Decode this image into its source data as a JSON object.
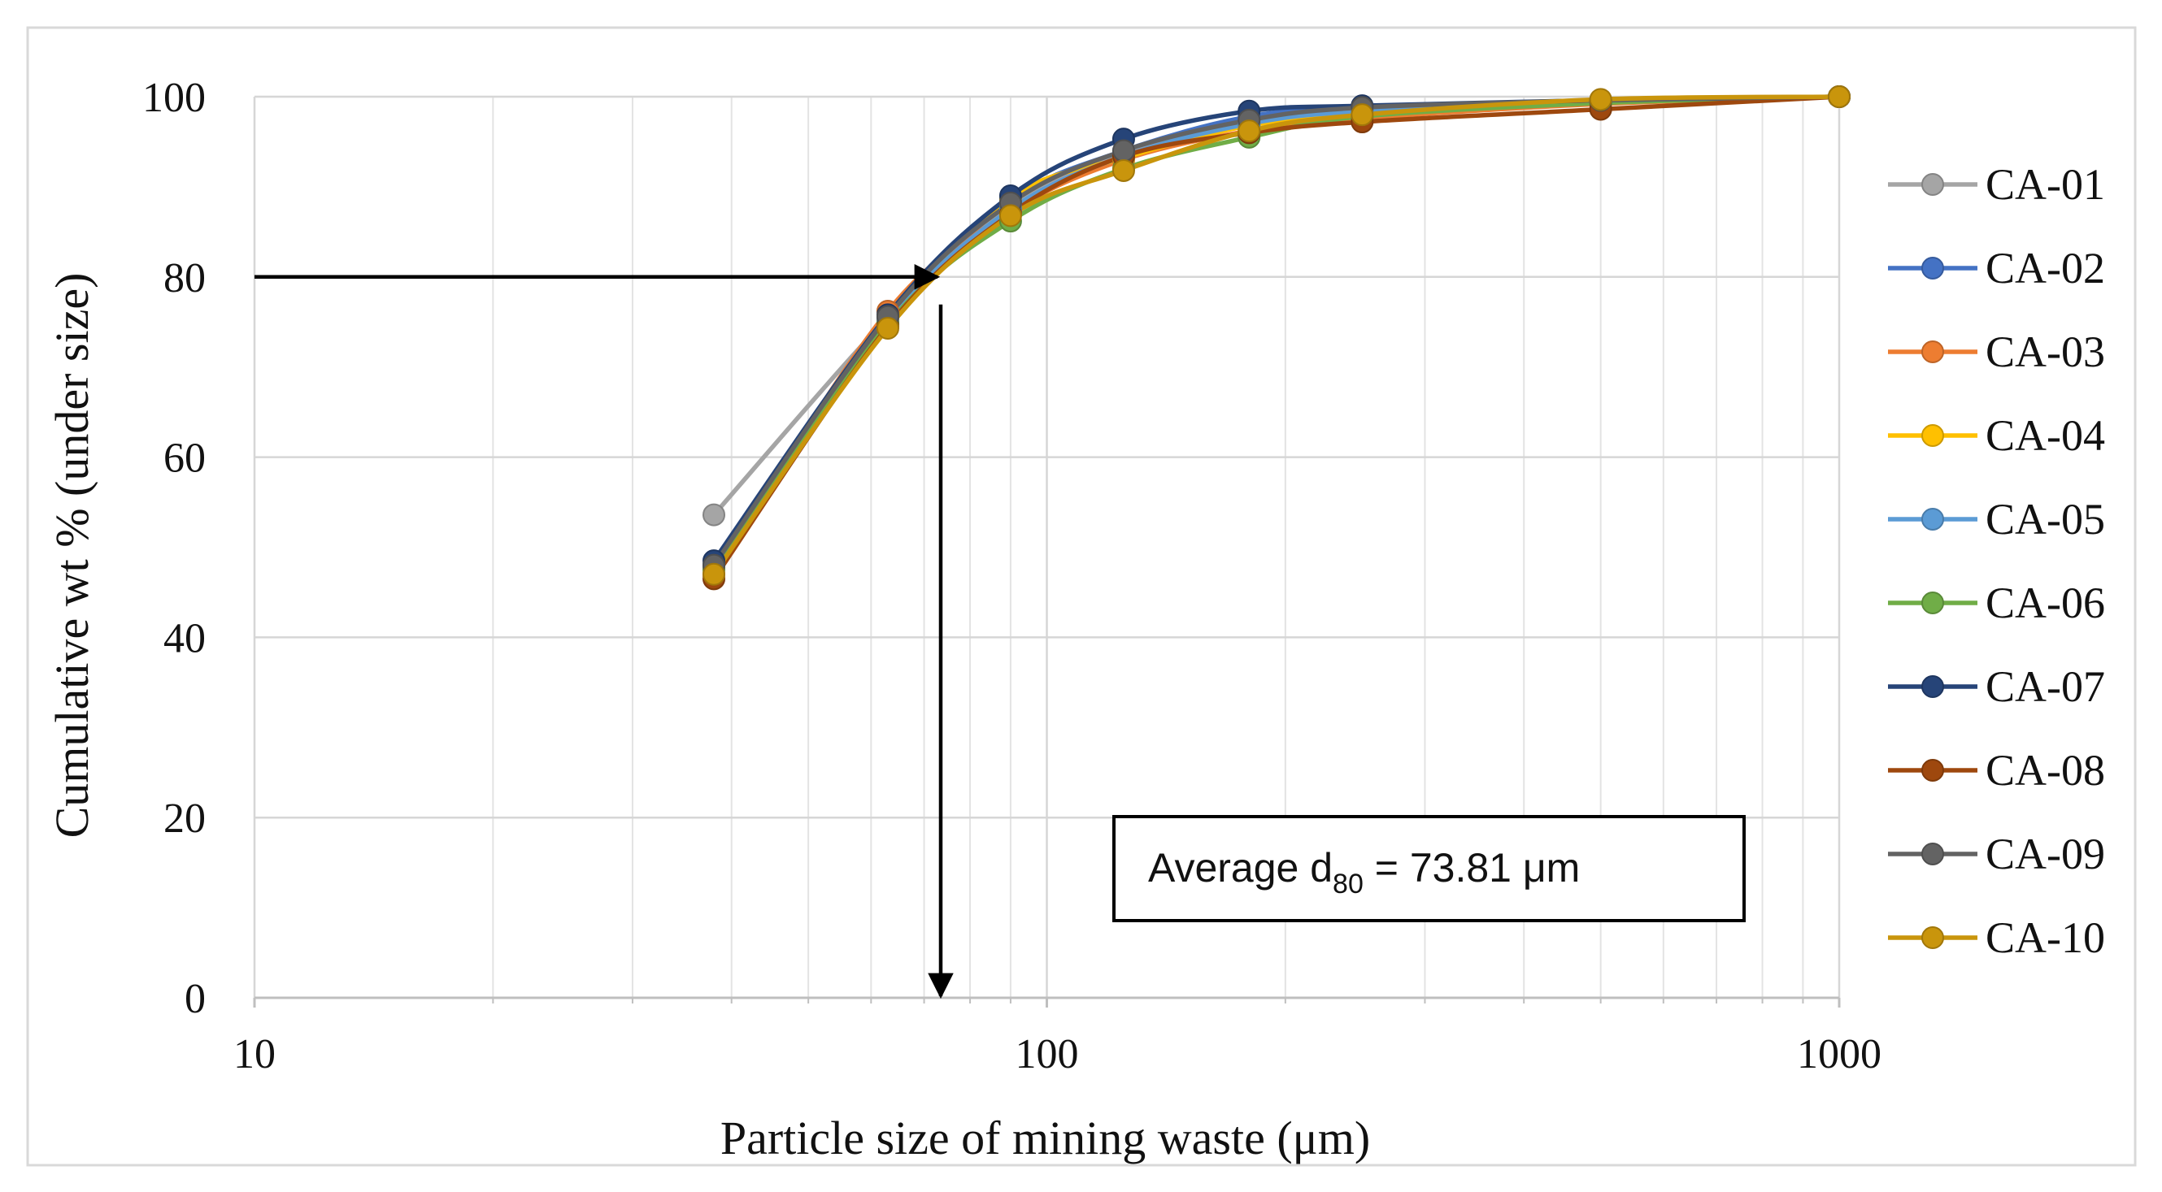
{
  "chart_data": {
    "type": "line",
    "xscale": "log",
    "xlabel": "Particle size of mining waste (μm)",
    "ylabel": "Cumulative wt % (under size)",
    "xlim": [
      10,
      1000
    ],
    "ylim": [
      0,
      100
    ],
    "xticks": [
      10,
      100,
      1000
    ],
    "xtick_labels": [
      "10",
      "100",
      "1000"
    ],
    "yticks": [
      0,
      20,
      40,
      60,
      80,
      100
    ],
    "ytick_labels": [
      "0",
      "20",
      "40",
      "60",
      "80",
      "100"
    ],
    "grid": true,
    "legend_position": "right",
    "annotation": {
      "prefix": "Average d",
      "subscript": "80",
      "suffix": " = 73.81 μm",
      "d80_x": 73.81,
      "d80_y": 80
    },
    "x": [
      38,
      63,
      90,
      125,
      180,
      250,
      500,
      1000
    ],
    "series": [
      {
        "name": "CA-01",
        "color": "#a5a5a5",
        "values": [
          53.6,
          75.5,
          88.0,
          93.5,
          97.0,
          98.5,
          99.6,
          100
        ]
      },
      {
        "name": "CA-02",
        "color": "#4472c4",
        "values": [
          48.0,
          75.5,
          88.5,
          94.0,
          97.8,
          98.8,
          99.6,
          100
        ]
      },
      {
        "name": "CA-03",
        "color": "#ed7d31",
        "values": [
          47.0,
          76.2,
          87.2,
          93.0,
          96.2,
          97.6,
          99.2,
          100
        ]
      },
      {
        "name": "CA-04",
        "color": "#ffc000",
        "values": [
          47.8,
          75.0,
          88.8,
          93.2,
          96.8,
          98.0,
          99.4,
          100
        ]
      },
      {
        "name": "CA-05",
        "color": "#5b9bd5",
        "values": [
          48.0,
          75.0,
          87.5,
          93.4,
          97.0,
          98.4,
          99.5,
          100
        ]
      },
      {
        "name": "CA-06",
        "color": "#70ad47",
        "values": [
          47.5,
          74.8,
          86.2,
          92.0,
          95.5,
          97.8,
          99.3,
          100
        ]
      },
      {
        "name": "CA-07",
        "color": "#264478",
        "values": [
          48.5,
          75.8,
          89.0,
          95.3,
          98.4,
          99.0,
          99.6,
          100
        ]
      },
      {
        "name": "CA-08",
        "color": "#9e480e",
        "values": [
          46.5,
          74.5,
          87.0,
          93.4,
          96.0,
          97.2,
          98.6,
          100
        ]
      },
      {
        "name": "CA-09",
        "color": "#636363",
        "values": [
          48.0,
          75.6,
          88.2,
          94.0,
          97.4,
          98.8,
          99.6,
          100
        ]
      },
      {
        "name": "CA-10",
        "color": "#c9950c",
        "values": [
          47.0,
          74.3,
          86.8,
          91.8,
          96.2,
          98.0,
          99.7,
          100
        ]
      }
    ]
  }
}
